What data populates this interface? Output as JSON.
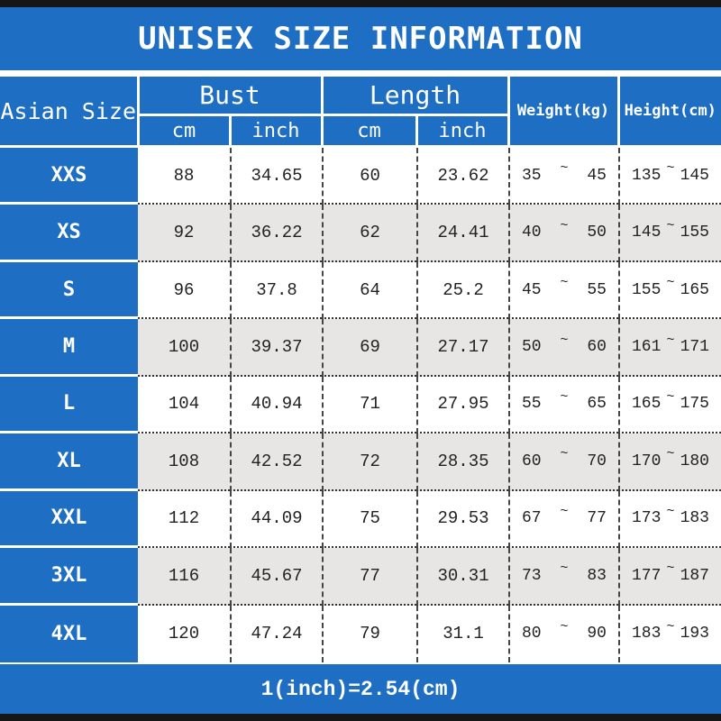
{
  "title": {
    "text": "UNISEX SIZE INFORMATION"
  },
  "table": {
    "corner_label": "Asian Size",
    "bust_label": "Bust",
    "length_label": "Length",
    "sub_headers": [
      "cm",
      "inch",
      "cm",
      "inch"
    ],
    "weight_header": "Weight(kg)",
    "height_header": "Height(cm)",
    "tilde": "~",
    "rows": [
      {
        "size": "XXS",
        "bust_cm": "88",
        "bust_in": "34.65",
        "len_cm": "60",
        "len_in": "23.62",
        "weight_min": "35",
        "weight_max": "45",
        "height_min": "135",
        "height_max": "145"
      },
      {
        "size": "XS",
        "bust_cm": "92",
        "bust_in": "36.22",
        "len_cm": "62",
        "len_in": "24.41",
        "weight_min": "40",
        "weight_max": "50",
        "height_min": "145",
        "height_max": "155"
      },
      {
        "size": "S",
        "bust_cm": "96",
        "bust_in": "37.8",
        "len_cm": "64",
        "len_in": "25.2",
        "weight_min": "45",
        "weight_max": "55",
        "height_min": "155",
        "height_max": "165"
      },
      {
        "size": "M",
        "bust_cm": "100",
        "bust_in": "39.37",
        "len_cm": "69",
        "len_in": "27.17",
        "weight_min": "50",
        "weight_max": "60",
        "height_min": "161",
        "height_max": "171"
      },
      {
        "size": "L",
        "bust_cm": "104",
        "bust_in": "40.94",
        "len_cm": "71",
        "len_in": "27.95",
        "weight_min": "55",
        "weight_max": "65",
        "height_min": "165",
        "height_max": "175"
      },
      {
        "size": "XL",
        "bust_cm": "108",
        "bust_in": "42.52",
        "len_cm": "72",
        "len_in": "28.35",
        "weight_min": "60",
        "weight_max": "70",
        "height_min": "170",
        "height_max": "180"
      },
      {
        "size": "XXL",
        "bust_cm": "112",
        "bust_in": "44.09",
        "len_cm": "75",
        "len_in": "29.53",
        "weight_min": "67",
        "weight_max": "77",
        "height_min": "173",
        "height_max": "183"
      },
      {
        "size": "3XL",
        "bust_cm": "116",
        "bust_in": "45.67",
        "len_cm": "77",
        "len_in": "30.31",
        "weight_min": "73",
        "weight_max": "83",
        "height_min": "177",
        "height_max": "187"
      },
      {
        "size": "4XL",
        "bust_cm": "120",
        "bust_in": "47.24",
        "len_cm": "79",
        "len_in": "31.1",
        "weight_min": "80",
        "weight_max": "90",
        "height_min": "183",
        "height_max": "193"
      }
    ]
  },
  "footer": {
    "text": "1(inch)=2.54(cm)"
  },
  "colors": {
    "accent_blue": "#1e6fc3",
    "alt_row_gray": "#e8e6e4",
    "frame_bar_black": "#161616",
    "header_text": "#ffffff",
    "data_text": "#222222"
  }
}
